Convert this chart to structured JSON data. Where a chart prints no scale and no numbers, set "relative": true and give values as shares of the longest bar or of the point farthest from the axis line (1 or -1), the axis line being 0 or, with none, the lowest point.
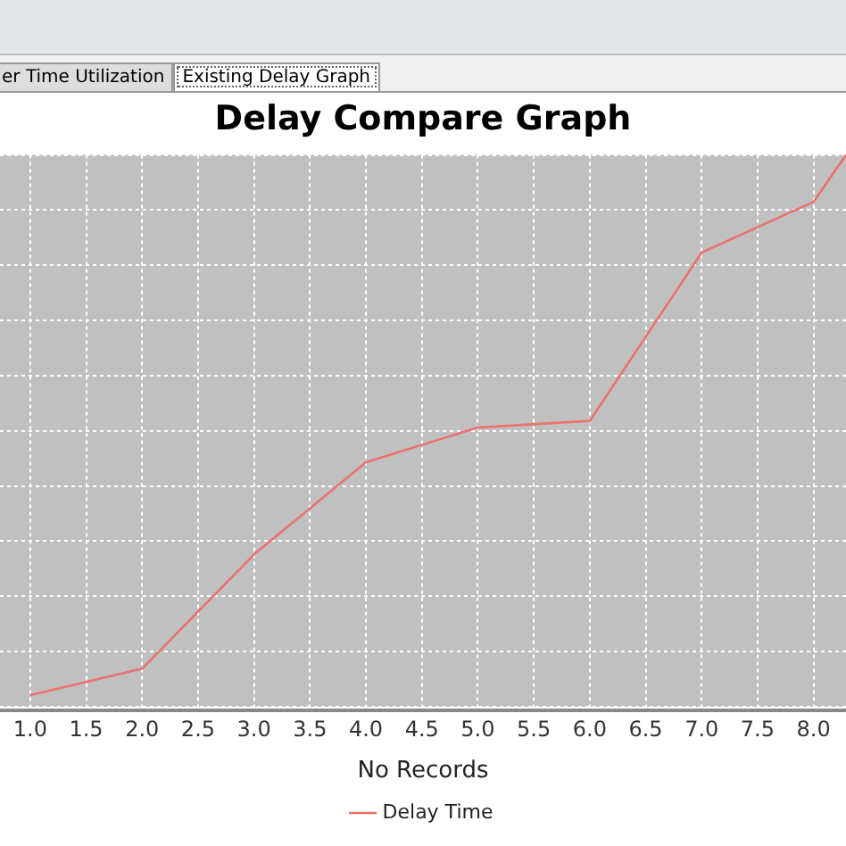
{
  "chart_data": {
    "type": "line",
    "title": "Delay Compare Graph",
    "xlabel": "No Records",
    "annotations": [
      "er Time Utilization",
      "Existing Delay Graph"
    ],
    "relative": true,
    "x": [
      1,
      2,
      3,
      4,
      5,
      6,
      7,
      8,
      8.29
    ],
    "series": [
      {
        "name": "Delay Time",
        "color": "#e8736f",
        "values": [
          0.021,
          0.069,
          0.276,
          0.443,
          0.506,
          0.518,
          0.823,
          0.915,
          1.0
        ]
      }
    ],
    "xlim": [
      0.73,
      8.29
    ],
    "xticks": [
      {
        "value": 1,
        "label": "1.0"
      },
      {
        "value": 1.5,
        "label": "1.5"
      },
      {
        "value": 2,
        "label": "2.0"
      },
      {
        "value": 2.5,
        "label": "2.5"
      },
      {
        "value": 3,
        "label": "3.0"
      },
      {
        "value": 3.5,
        "label": "3.5"
      },
      {
        "value": 4,
        "label": "4.0"
      },
      {
        "value": 4.5,
        "label": "4.5"
      },
      {
        "value": 5,
        "label": "5.0"
      },
      {
        "value": 5.5,
        "label": "5.5"
      },
      {
        "value": 6,
        "label": "6.0"
      },
      {
        "value": 6.5,
        "label": "6.5"
      },
      {
        "value": 7,
        "label": "7.0"
      },
      {
        "value": 7.5,
        "label": "7.5"
      },
      {
        "value": 8,
        "label": "8.0"
      }
    ],
    "grid": true,
    "legend": "bottom",
    "marker": "none",
    "line_style": "solid"
  }
}
